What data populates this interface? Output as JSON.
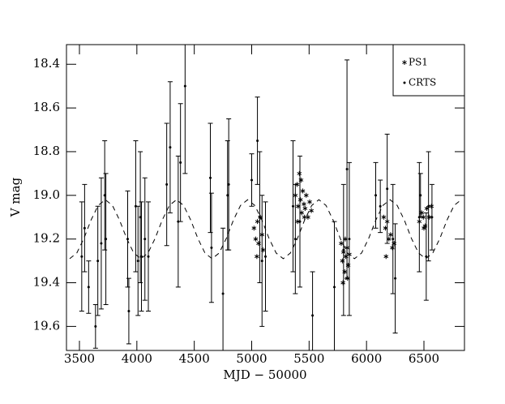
{
  "chart_data": {
    "type": "scatter",
    "xlabel": "MJD − 50000",
    "ylabel": "V mag",
    "xlim": [
      3387,
      6853
    ],
    "ylim": [
      18.31,
      19.71
    ],
    "y_inverted": true,
    "xticks": [
      3500,
      4000,
      4500,
      5000,
      5500,
      6000,
      6500
    ],
    "yticks": [
      18.4,
      18.6,
      18.8,
      {
        "value": 19,
        "label": "19.0"
      },
      19.2,
      19.4,
      19.6
    ],
    "legend": "upper right",
    "series": [
      {
        "name": "PS1",
        "marker": "asterisk",
        "color": "#000000",
        "x": [
          5020,
          5035,
          5050,
          5060,
          5075,
          5090,
          5100,
          5045,
          5380,
          5395,
          5405,
          5415,
          5425,
          5435,
          5445,
          5455,
          5465,
          5475,
          5490,
          5505,
          5520,
          5400,
          5430,
          5460,
          5780,
          5790,
          5800,
          5810,
          5820,
          5830,
          5840,
          5850,
          5795,
          5815,
          5835,
          6150,
          6165,
          6180,
          6195,
          6210,
          6225,
          6240,
          6170,
          6460,
          6480,
          6495,
          6510,
          6525,
          6545,
          6565,
          6500
        ],
        "values": [
          19.15,
          19.2,
          19.12,
          19.22,
          19.1,
          19.18,
          19.25,
          19.28,
          19.0,
          18.95,
          19.05,
          18.9,
          19.02,
          19.08,
          18.98,
          19.04,
          19.06,
          19.0,
          19.1,
          19.03,
          19.07,
          19.12,
          18.93,
          19.1,
          19.22,
          19.3,
          19.26,
          19.35,
          19.28,
          19.24,
          19.32,
          19.27,
          19.4,
          19.2,
          19.38,
          19.1,
          19.15,
          19.12,
          19.2,
          19.18,
          19.24,
          19.22,
          19.28,
          19.12,
          19.08,
          19.1,
          19.14,
          19.06,
          19.1,
          19.05,
          19.15
        ]
      },
      {
        "name": "CRTS",
        "marker": "dot",
        "color": "#000000",
        "x": [
          3520,
          3545,
          3580,
          3640,
          3660,
          3690,
          3720,
          3730,
          3920,
          3930,
          3990,
          4010,
          4030,
          4040,
          4070,
          4100,
          4260,
          4290,
          4360,
          4380,
          4420,
          4640,
          4650,
          4750,
          4790,
          4800,
          5000,
          5050,
          5070,
          5090,
          5120,
          5360,
          5380,
          5420,
          5530,
          5720,
          5800,
          5830,
          5850,
          6080,
          6120,
          6180,
          6230,
          6250,
          6460,
          6470,
          6520,
          6540,
          6570
        ],
        "values": [
          19.28,
          19.15,
          19.42,
          19.6,
          19.3,
          19.22,
          19.0,
          19.2,
          19.2,
          19.53,
          19.05,
          19.3,
          19.1,
          19.28,
          19.2,
          19.28,
          18.95,
          18.78,
          19.12,
          18.85,
          18.5,
          18.92,
          19.24,
          19.45,
          19.0,
          18.95,
          18.93,
          18.75,
          19.1,
          19.3,
          19.28,
          19.05,
          19.2,
          19.12,
          19.55,
          19.42,
          19.25,
          18.88,
          19.2,
          19.0,
          19.05,
          18.97,
          19.2,
          19.38,
          19.1,
          19.0,
          19.28,
          19.05,
          19.1
        ],
        "errors": [
          0.25,
          0.2,
          0.12,
          0.1,
          0.25,
          0.3,
          0.25,
          0.3,
          0.22,
          0.15,
          0.3,
          0.25,
          0.3,
          0.25,
          0.28,
          0.25,
          0.28,
          0.3,
          0.3,
          0.27,
          0.4,
          0.25,
          0.25,
          0.3,
          0.25,
          0.3,
          0.12,
          0.2,
          0.3,
          0.3,
          0.25,
          0.3,
          0.25,
          0.3,
          0.2,
          0.3,
          0.3,
          0.5,
          0.35,
          0.15,
          0.12,
          0.25,
          0.25,
          0.25,
          0.25,
          0.1,
          0.2,
          0.25,
          0.15
        ]
      },
      {
        "style": "dashed",
        "color": "#000000",
        "x": [
          3415,
          3477,
          3539,
          3601,
          3663,
          3725,
          3787,
          3849,
          3911,
          3973,
          4035,
          4097,
          4159,
          4221,
          4283,
          4345,
          4407,
          4469,
          4531,
          4593,
          4655,
          4717,
          4779,
          4841,
          4903,
          4965,
          5027,
          5089,
          5151,
          5213,
          5275,
          5337,
          5399,
          5461,
          5523,
          5585,
          5647,
          5709,
          5771,
          5833,
          5895,
          5957,
          6019,
          6081,
          6143,
          6205,
          6267,
          6329,
          6391,
          6453,
          6515,
          6577,
          6639,
          6701,
          6763,
          6825
        ],
        "values": [
          19.29,
          19.264,
          19.197,
          19.113,
          19.046,
          19.02,
          19.046,
          19.113,
          19.197,
          19.264,
          19.29,
          19.264,
          19.197,
          19.113,
          19.046,
          19.02,
          19.046,
          19.113,
          19.197,
          19.264,
          19.29,
          19.264,
          19.197,
          19.113,
          19.046,
          19.02,
          19.046,
          19.113,
          19.197,
          19.264,
          19.29,
          19.264,
          19.197,
          19.113,
          19.046,
          19.02,
          19.046,
          19.113,
          19.197,
          19.264,
          19.29,
          19.264,
          19.197,
          19.113,
          19.046,
          19.02,
          19.046,
          19.113,
          19.197,
          19.264,
          19.29,
          19.264,
          19.197,
          19.113,
          19.046,
          19.02
        ]
      }
    ]
  }
}
